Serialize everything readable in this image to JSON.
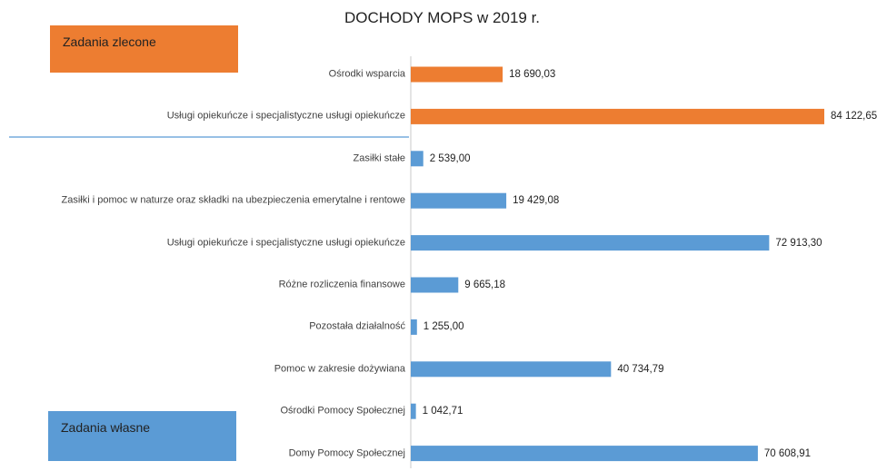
{
  "chart_data": {
    "type": "bar",
    "orientation": "horizontal",
    "title": "DOCHODY MOPS w 2019 r.",
    "categories": [
      "Ośrodki wsparcia",
      "Usługi opiekuńcze  i specjalistyczne usługi opiekuńcze",
      "Zasiłki stałe",
      "Zasiłki i pomoc w naturze oraz składki na ubezpieczenia emerytalne i rentowe",
      "Usługi opiekuńcze i specjalistyczne usługi opiekuńcze",
      "Różne rozliczenia finansowe",
      "Pozostała działalność",
      "Pomoc w zakresie dożywiana",
      "Ośrodki Pomocy Społecznej",
      "Domy Pomocy Społecznej"
    ],
    "values": [
      18690.03,
      84122.65,
      2539.0,
      19429.08,
      72913.3,
      9665.18,
      1255.0,
      40734.79,
      1042.71,
      70608.91
    ],
    "value_labels": [
      "18 690,03",
      "84 122,65",
      "2 539,00",
      "19 429,08",
      "72 913,30",
      "9 665,18",
      "1 255,00",
      "40 734,79",
      "1 042,71",
      "70 608,91"
    ],
    "colors": [
      "#ed7d31",
      "#ed7d31",
      "#5b9bd5",
      "#5b9bd5",
      "#5b9bd5",
      "#5b9bd5",
      "#5b9bd5",
      "#5b9bd5",
      "#5b9bd5",
      "#5b9bd5"
    ],
    "annotations": [
      {
        "text": "Zadania zlecone",
        "color": "#ed7d31"
      },
      {
        "text": "Zadania własne",
        "color": "#5b9bd5"
      }
    ]
  }
}
